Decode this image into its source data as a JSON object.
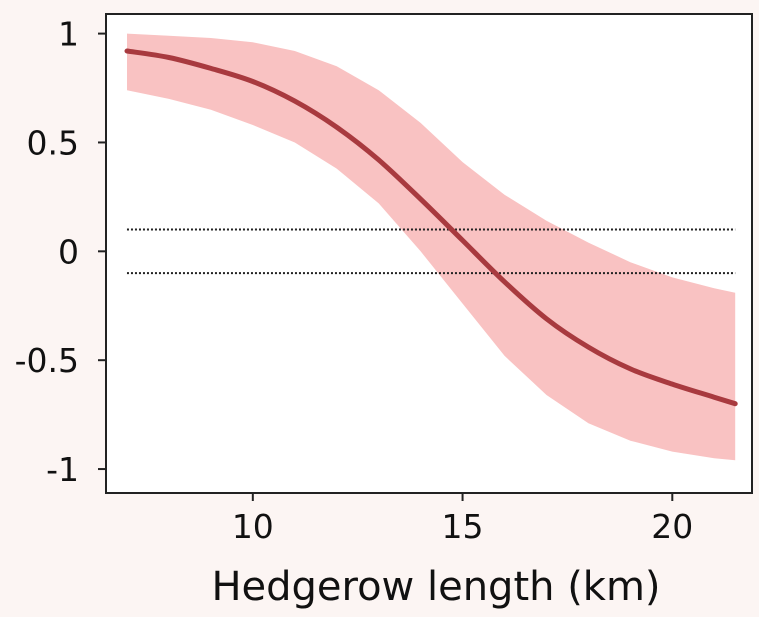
{
  "chart_data": {
    "type": "line",
    "title": "",
    "xlabel": "Hedgerow length (km)",
    "ylabel": "",
    "xlim": [
      6.5,
      21.9
    ],
    "ylim": [
      -1.11,
      1.09
    ],
    "x_ticks": [
      10,
      15,
      20
    ],
    "x_tick_labels": [
      "10",
      "15",
      "20"
    ],
    "y_ticks": [
      1,
      0.5,
      0,
      -0.5,
      -1
    ],
    "y_tick_labels": [
      "1",
      "0.5",
      "0",
      "-0.5",
      "-1"
    ],
    "grid": false,
    "legend": "none",
    "series": [
      {
        "x": [
          7,
          8,
          9,
          10,
          11,
          12,
          13,
          14,
          15,
          16,
          17,
          18,
          19,
          20,
          21,
          21.5
        ],
        "y": [
          0.92,
          0.89,
          0.84,
          0.78,
          0.69,
          0.57,
          0.42,
          0.24,
          0.05,
          -0.14,
          -0.31,
          -0.44,
          -0.54,
          -0.61,
          -0.67,
          -0.7
        ],
        "lower": [
          0.74,
          0.7,
          0.65,
          0.58,
          0.5,
          0.38,
          0.22,
          0.0,
          -0.24,
          -0.48,
          -0.66,
          -0.79,
          -0.87,
          -0.92,
          -0.95,
          -0.96
        ],
        "upper": [
          1.0,
          0.99,
          0.98,
          0.96,
          0.92,
          0.85,
          0.74,
          0.59,
          0.41,
          0.26,
          0.14,
          0.04,
          -0.05,
          -0.12,
          -0.17,
          -0.19
        ]
      }
    ],
    "reference_lines": [
      0.1,
      -0.1
    ],
    "colors": {
      "line": "#a83a3f",
      "band": "#f9c2c2",
      "reference": "#222222",
      "axes": "#222222",
      "page_background": "#fcf5f3",
      "plot_background": "#ffffff"
    }
  }
}
